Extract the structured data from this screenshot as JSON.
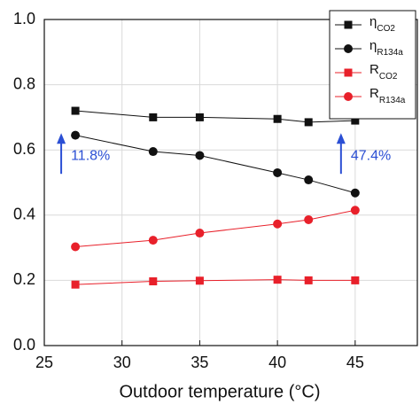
{
  "chart_data": {
    "type": "line",
    "xlabel": "Outdoor temperature (°C)",
    "x": [
      27,
      32,
      35,
      40,
      42,
      45
    ],
    "series": [
      {
        "symbol": "η",
        "subscript": "CO2",
        "color": "#111111",
        "marker": "square",
        "values": [
          0.72,
          0.7,
          0.7,
          0.695,
          0.685,
          0.69
        ]
      },
      {
        "symbol": "η",
        "subscript": "R134a",
        "color": "#111111",
        "marker": "circle",
        "values": [
          0.645,
          0.595,
          0.583,
          0.53,
          0.508,
          0.468
        ]
      },
      {
        "symbol": "R",
        "subscript": "CO2",
        "color": "#e8202a",
        "marker": "square",
        "values": [
          0.187,
          0.197,
          0.199,
          0.202,
          0.2,
          0.2
        ]
      },
      {
        "symbol": "R",
        "subscript": "R134a",
        "color": "#e8202a",
        "marker": "circle",
        "values": [
          0.303,
          0.323,
          0.345,
          0.373,
          0.386,
          0.415
        ]
      }
    ],
    "annotations": [
      {
        "text": "11.8%",
        "x": 27,
        "y": 0.6
      },
      {
        "text": "47.4%",
        "x": 45,
        "y": 0.6
      }
    ],
    "annotation_color": "#2b4fd4",
    "xlim": [
      25,
      49
    ],
    "xticks": [
      25,
      30,
      35,
      40,
      45
    ],
    "ylim": [
      0,
      1
    ],
    "yticks": [
      {
        "value": 0,
        "label": "0.0"
      },
      0.2,
      0.4,
      0.6,
      0.8,
      {
        "value": 1,
        "label": "1.0"
      }
    ],
    "grid": true,
    "legend": "upper right"
  }
}
